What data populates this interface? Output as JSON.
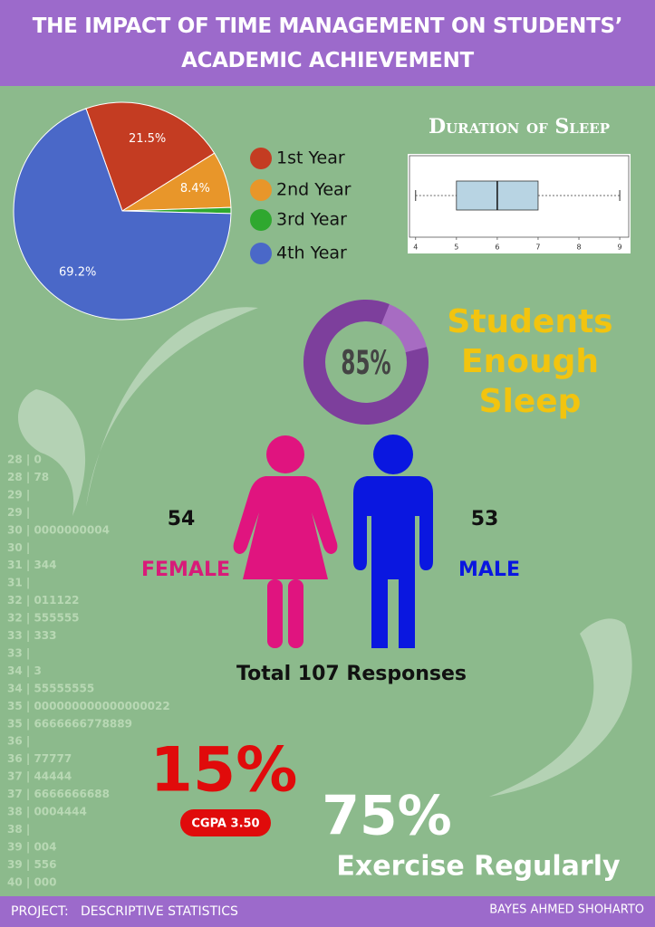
{
  "header": {
    "title": "THE IMPACT OF TIME MANAGEMENT ON STUDENTS’ ACADEMIC ACHIEVEMENT"
  },
  "chart_data": [
    {
      "type": "pie",
      "categories": [
        "1st Year",
        "2nd Year",
        "3rd Year",
        "4th Year"
      ],
      "values": [
        21.5,
        8.4,
        0.9,
        69.2
      ],
      "value_labels": [
        "21.5%",
        "8.4%",
        null,
        "69.2%"
      ],
      "colors": [
        "#c43c22",
        "#e8962a",
        "#2fa82f",
        "#4a68c8"
      ]
    },
    {
      "type": "box",
      "title": "Duration of Sleep",
      "min": 4,
      "q1": 5,
      "median": 6,
      "q3": 7,
      "max": 9,
      "xlim": [
        3.85,
        9.22
      ],
      "xticks": [
        4,
        5,
        6,
        7,
        8,
        9
      ],
      "color": "#b8d4e3"
    },
    {
      "type": "donut",
      "title": "Students Enough Sleep",
      "values": [
        85
      ],
      "value_labels": [
        "85%"
      ],
      "colors": [
        "#7d3f9c",
        "#a76cc2"
      ]
    }
  ],
  "gender": {
    "female": {
      "count": 54,
      "label": "FEMALE"
    },
    "male": {
      "count": 53,
      "label": "MALE"
    },
    "total": "Total 107 Responses"
  },
  "stem_leaf": [
    "28 | 0",
    "28 | 78",
    "29 |",
    "29 |",
    "30 | 0000000004",
    "30 |",
    "31 | 344",
    "31 |",
    "32 | 011122",
    "32 | 555555",
    "33 | 333",
    "33 |",
    "34 | 3",
    "34 | 55555555",
    "35 | 000000000000000022",
    "35 | 6666666778889",
    "36 |",
    "36 | 77777",
    "37 | 44444",
    "37 | 6666666688",
    "38 | 0004444",
    "38 |",
    "39 | 004",
    "39 | 556",
    "40 | 000"
  ],
  "highlights": {
    "cgpa": {
      "value": "15%",
      "label": "CGPA 3.50"
    },
    "exercise": {
      "value": "75%",
      "label": "Exercise Regularly"
    }
  },
  "footer": {
    "left": "PROJECT:   DESCRIPTIVE STATISTICS",
    "right": "BAYES AHMED SHOHARTO"
  }
}
